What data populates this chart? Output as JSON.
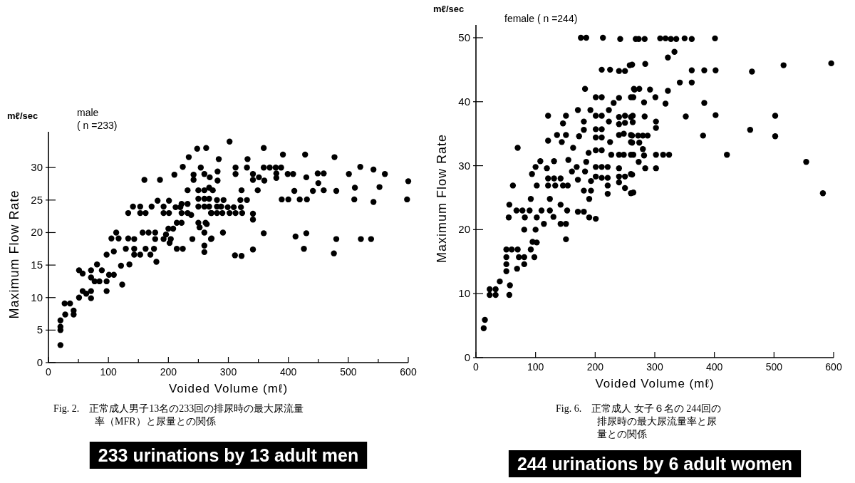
{
  "chart_data": [
    {
      "type": "scatter",
      "title": "233 urinations by 13 adult men",
      "subtitle": "Fig. 2.　正常成人男子13名の233回の排尿時の最大尿流量率（MFR）と尿量との関係",
      "xlabel": "Voided Volume (mℓ)",
      "ylabel": "Maximum Flow Rate",
      "annotations": [
        "mℓ/sec",
        "male",
        "( n =233)"
      ],
      "marker": "circle",
      "xlim": [
        0,
        600
      ],
      "ylim": [
        0,
        35.5
      ],
      "xticks": [
        0,
        {
          "value": 50,
          "label": null
        },
        100,
        {
          "value": 150,
          "label": null
        },
        200,
        {
          "value": 250,
          "label": null
        },
        300,
        {
          "value": 350,
          "label": null
        },
        400,
        {
          "value": 450,
          "label": null
        },
        500,
        {
          "value": 550,
          "label": null
        },
        600
      ],
      "yticks": [
        0,
        5,
        10,
        15,
        20,
        25,
        30
      ],
      "series": [
        {
          "color": "#000000",
          "x": [
            20,
            20,
            20,
            20,
            28,
            27,
            36,
            42,
            42,
            51,
            51,
            57,
            57,
            63,
            71,
            71,
            71,
            71,
            77,
            85,
            97,
            81,
            89,
            97,
            97,
            101,
            109,
            109,
            105,
            117,
            113,
            123,
            121,
            129,
            133,
            135,
            133,
            141,
            153,
            153,
            143,
            143,
            143,
            153,
            157,
            167,
            160,
            162,
            170,
            176,
            162,
            172,
            178,
            178,
            180,
            186,
            182,
            192,
            192,
            192,
            196,
            200,
            202,
            204,
            201,
            201,
            210,
            208,
            214,
            214,
            224,
            222,
            212,
            222,
            220,
            224,
            222,
            232,
            234,
            232,
            232,
            240,
            242,
            242,
            238,
            248,
            250,
            250,
            250,
            250,
            252,
            254,
            260,
            260,
            260,
            260,
            260,
            260,
            263,
            262,
            260,
            268,
            268,
            268,
            269,
            271,
            271,
            302,
            284,
            282,
            282,
            274,
            281,
            292,
            281,
            288,
            299,
            309,
            321,
            272,
            281,
            290,
            302,
            312,
            323,
            341,
            341,
            264,
            272,
            291,
            311,
            322,
            341,
            312,
            312,
            332,
            331,
            322,
            320,
            331,
            341,
            341,
            351,
            349,
            359,
            359,
            369,
            379,
            388,
            380,
            380,
            360,
            359,
            391,
            399,
            408,
            389,
            400,
            410,
            419,
            431,
            412,
            430,
            426,
            428,
            430,
            441,
            450,
            449,
            459,
            459,
            477,
            480,
            480,
            476,
            501,
            511,
            510,
            520,
            521,
            538,
            542,
            542,
            552,
            561,
            598,
            600
          ],
          "values": [
            2.7,
            5,
            6.5,
            5.5,
            7.4,
            9.1,
            9.1,
            8,
            7.4,
            10,
            14.2,
            13.7,
            11,
            10.6,
            9.9,
            11,
            14.2,
            13.1,
            12.5,
            12.5,
            12.5,
            15.1,
            14.2,
            11,
            16.6,
            13.5,
            13.5,
            17.1,
            19.1,
            19.1,
            20,
            12,
            14.9,
            17.5,
            19.1,
            15.1,
            23,
            24,
            24,
            23,
            19,
            17.5,
            16.6,
            16.6,
            20,
            20,
            28.1,
            17.5,
            16.6,
            17.5,
            23,
            24,
            20,
            19,
            15.5,
            28.1,
            24.9,
            23,
            24,
            19,
            19.7,
            20.6,
            18.4,
            19,
            24.9,
            23,
            28.9,
            20.6,
            21.5,
            17.5,
            17.5,
            21.5,
            23.9,
            24.4,
            23.9,
            30.1,
            23,
            26.5,
            31.6,
            24.4,
            23,
            19,
            28.9,
            28.1,
            22.7,
            32.9,
            26.5,
            24,
            25.2,
            21.5,
            20.8,
            30,
            25.2,
            24,
            26.5,
            20,
            18,
            17,
            33,
            21.5,
            29,
            25.2,
            24,
            26.9,
            28.5,
            23,
            19,
            34,
            31.3,
            29.4,
            28,
            26.5,
            25,
            25,
            24,
            24,
            23.9,
            23.9,
            23.9,
            23,
            23,
            23,
            23,
            23,
            23,
            22.9,
            22,
            21.3,
            19.1,
            20,
            16.5,
            16.4,
            17.4,
            30,
            29,
            31.3,
            30,
            26.5,
            25,
            25,
            29,
            28.1,
            28.5,
            26.5,
            33,
            30,
            30,
            30,
            30,
            29.1,
            28.4,
            28,
            19.9,
            32,
            29,
            29,
            25.1,
            25.1,
            26.4,
            25.1,
            25.1,
            19.4,
            19.9,
            17.5,
            32,
            28.5,
            26.4,
            27.6,
            29.1,
            29.1,
            26.5,
            31.6,
            26.4,
            19,
            16.8,
            29,
            26.9,
            25.1,
            30.1,
            19,
            19,
            29.7,
            24.7,
            27,
            29,
            25.1,
            27.9
          ]
        }
      ]
    },
    {
      "type": "scatter",
      "title": "244 urinations by 6 adult women",
      "subtitle": "Fig. 6.　正常成人 女子６名の 244回の排尿時の最大尿流量率と尿量との関係",
      "xlabel": "Voided Volume (mℓ)",
      "ylabel": "Maximum Flow Rate",
      "annotations": [
        "mℓ/sec",
        "female ( n =244)"
      ],
      "marker": "circle",
      "xlim": [
        0,
        600
      ],
      "ylim": [
        0,
        52
      ],
      "xticks": [
        0,
        100,
        200,
        300,
        400,
        500,
        600
      ],
      "yticks": [
        0,
        10,
        20,
        30,
        40,
        50
      ],
      "series": [
        {
          "color": "#000000",
          "x": [
            13,
            15,
            23,
            23,
            33,
            33,
            40,
            56,
            57,
            51,
            51,
            51,
            51,
            60,
            70,
            69,
            72,
            81,
            81,
            81,
            55,
            56,
            62,
            70,
            68,
            78,
            82,
            90,
            92,
            92,
            95,
            98,
            94,
            100,
            102,
            100,
            102,
            102,
            108,
            110,
            114,
            119,
            121,
            121,
            121,
            121,
            124,
            124,
            130,
            131,
            131,
            133,
            136,
            142,
            144,
            146,
            142,
            146,
            142,
            151,
            151,
            151,
            151,
            153,
            154,
            155,
            161,
            163,
            169,
            171,
            173,
            171,
            171,
            181,
            181,
            181,
            183,
            176,
            185,
            181,
            183,
            185,
            189,
            190,
            190,
            192,
            193,
            193,
            201,
            201,
            201,
            201,
            201,
            201,
            201,
            201,
            211,
            211,
            211,
            211,
            211,
            211,
            211,
            221,
            221,
            221,
            221,
            213,
            211,
            225,
            223,
            223,
            225,
            227,
            231,
            240,
            242,
            240,
            250,
            258,
            240,
            240,
            240,
            240,
            240,
            240,
            240,
            250,
            250,
            248,
            248,
            250,
            250,
            260,
            260,
            260,
            260,
            260,
            260,
            260,
            266,
            268,
            264,
            262,
            273,
            264,
            282,
            284,
            302,
            302,
            314,
            324,
            262,
            274,
            280,
            262,
            272,
            280,
            288,
            302,
            302,
            263,
            263,
            283,
            282,
            264,
            265,
            274,
            292,
            301,
            318,
            322,
            342,
            362,
            352,
            383,
            402,
            381,
            421,
            362,
            383,
            402,
            262,
            284,
            322,
            333,
            273,
            283,
            309,
            318,
            327,
            336,
            350,
            362,
            401,
            463,
            516,
            596,
            460,
            502,
            502,
            554,
            582
          ],
          "values": [
            4.6,
            5.9,
            10.7,
            9.8,
            10.7,
            9.8,
            11.9,
            9.8,
            11.3,
            13.5,
            14.6,
            15.7,
            16.9,
            16.9,
            16.9,
            13.9,
            15.7,
            14.6,
            15.7,
            20,
            21.9,
            23.9,
            26.9,
            32.8,
            23,
            23,
            21.9,
            23,
            24.8,
            16.9,
            18.1,
            15.7,
            28.7,
            29.8,
            26.9,
            20,
            18,
            21.9,
            30.7,
            23,
            20.9,
            29.6,
            33.9,
            37.8,
            26.9,
            28,
            24.8,
            23,
            22,
            30.7,
            28,
            26.9,
            34.8,
            23.9,
            33.7,
            36.6,
            28,
            26.9,
            20.9,
            20.9,
            18.5,
            37.8,
            34.8,
            23,
            26.9,
            30.9,
            29.1,
            32.8,
            29.8,
            38.7,
            34.6,
            22.8,
            27.8,
            22.8,
            36.9,
            35.6,
            42,
            50,
            50,
            26.1,
            29.1,
            30.6,
            32,
            24.8,
            21.9,
            38.7,
            27.6,
            26.1,
            21.7,
            40.7,
            37.8,
            35.7,
            34.4,
            32.4,
            29.8,
            28.3,
            40.7,
            37.8,
            35.7,
            34.4,
            32.4,
            29.8,
            28.1,
            28.1,
            29.8,
            26.9,
            25.6,
            50,
            45,
            45,
            38.7,
            36.9,
            33.7,
            31.7,
            39.8,
            40.6,
            49.8,
            44.8,
            44.8,
            45.7,
            37.6,
            36.5,
            34.8,
            31.7,
            29.6,
            28.3,
            27.4,
            28.3,
            26.5,
            35,
            31.7,
            37.8,
            36.7,
            25.7,
            28.7,
            31.7,
            33.7,
            34.8,
            37.6,
            40.7,
            41.9,
            49.8,
            25.8,
            28.6,
            30.6,
            31.7,
            31.6,
            29.6,
            29.6,
            31.7,
            31.7,
            31.7,
            33.6,
            33.6,
            32.6,
            34.7,
            34.7,
            34.7,
            34.7,
            35.9,
            36.9,
            36.8,
            37.8,
            37.7,
            39.9,
            40.7,
            42,
            42,
            41.9,
            40.7,
            39.7,
            41.7,
            43,
            43,
            37.7,
            39.8,
            37.9,
            34.7,
            31.7,
            44.9,
            44.9,
            44.9,
            45.8,
            45.9,
            46.9,
            47.8,
            49.8,
            49.8,
            49.9,
            49.9,
            49.8,
            49.8,
            49.9,
            49.8,
            49.9,
            44.7,
            45.7,
            46,
            35.6,
            37.8,
            34.6,
            30.6,
            25.7
          ]
        }
      ]
    }
  ]
}
